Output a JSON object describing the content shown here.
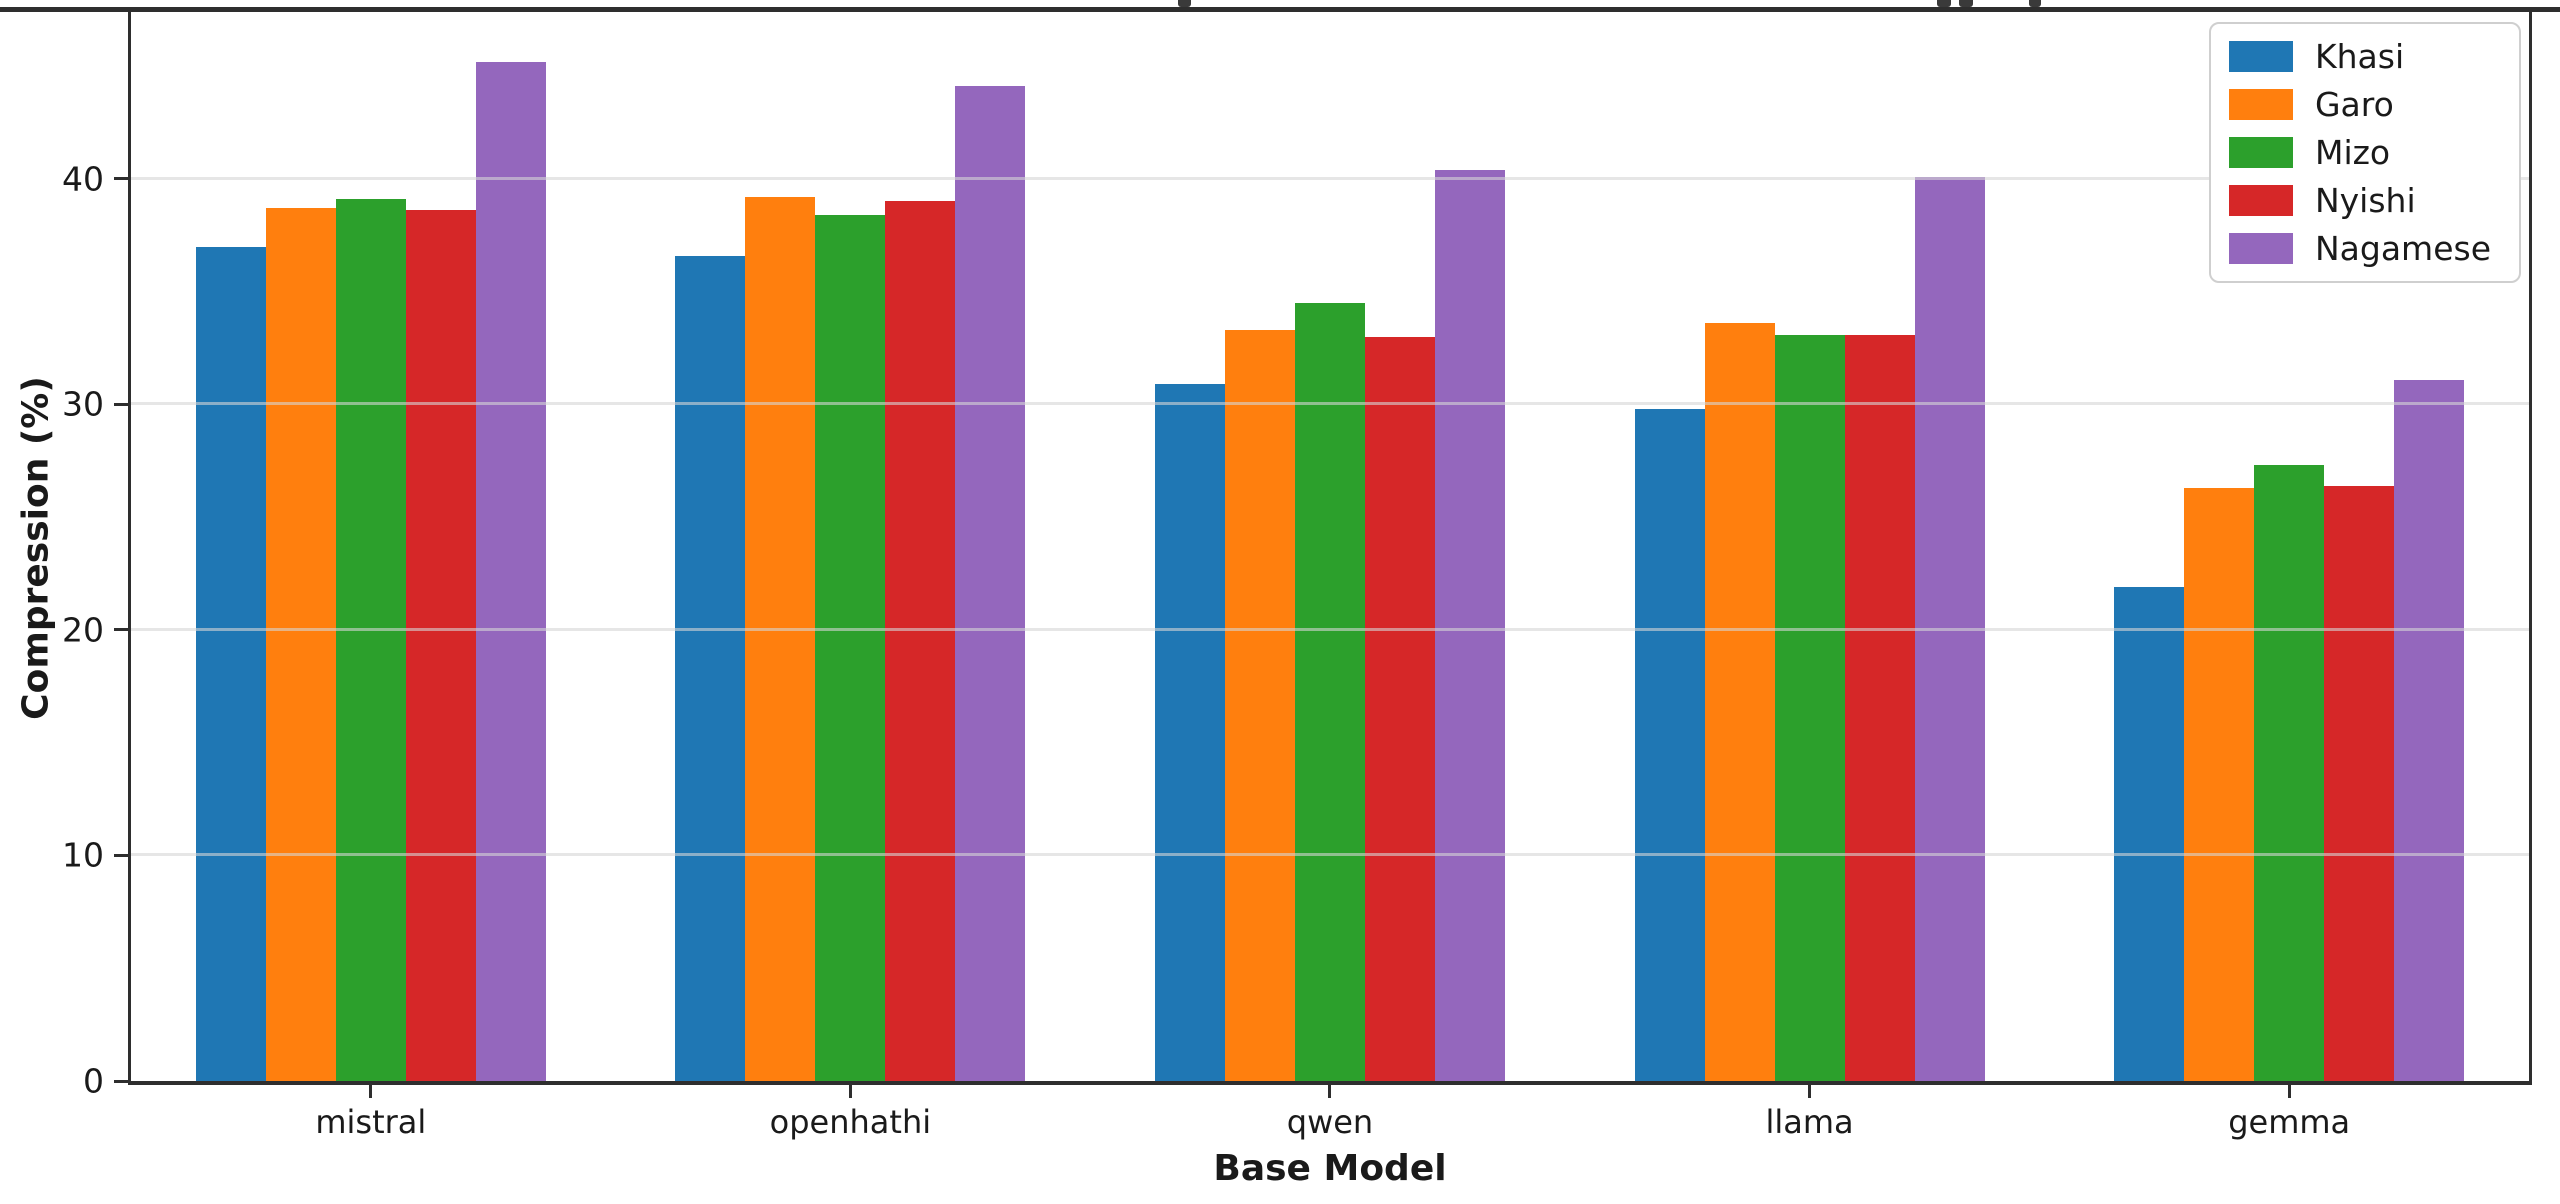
{
  "chart_data": {
    "type": "bar",
    "title": "",
    "xlabel": "Base Model",
    "ylabel": "Compression (%)",
    "categories": [
      "mistral",
      "openhathi",
      "qwen",
      "llama",
      "gemma"
    ],
    "series": [
      {
        "name": "Khasi",
        "color": "#1f77b4",
        "values": [
          37.0,
          36.6,
          30.9,
          29.8,
          21.9
        ]
      },
      {
        "name": "Garo",
        "color": "#ff7f0e",
        "values": [
          38.7,
          39.2,
          33.3,
          33.6,
          26.3
        ]
      },
      {
        "name": "Mizo",
        "color": "#2ca02c",
        "values": [
          39.1,
          38.4,
          34.5,
          33.1,
          27.3
        ]
      },
      {
        "name": "Nyishi",
        "color": "#d62728",
        "values": [
          38.6,
          39.0,
          33.0,
          33.1,
          26.4
        ]
      },
      {
        "name": "Nagamese",
        "color": "#9467bd",
        "values": [
          45.2,
          44.1,
          40.4,
          40.1,
          31.1
        ]
      }
    ],
    "yticks": [
      0,
      10,
      20,
      30,
      40
    ],
    "ylim": [
      0,
      47.4
    ],
    "grid": true,
    "legend_position": "upper right",
    "colors": {
      "background": "#ffffff",
      "spine": "#2e2e2e",
      "gridline": "#e4e4e4"
    }
  }
}
